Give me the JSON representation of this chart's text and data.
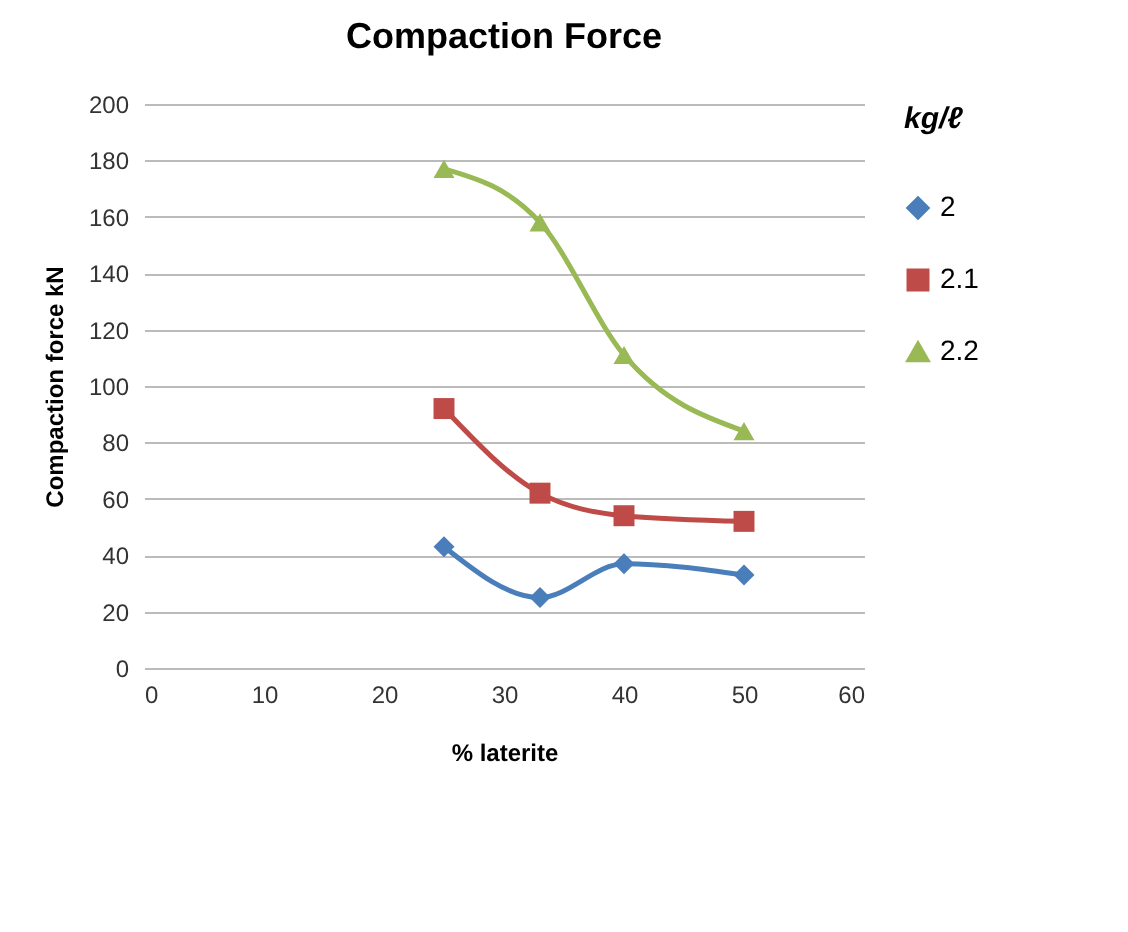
{
  "chart_data": {
    "type": "line",
    "title": "Compaction Force",
    "xlabel": "% laterite",
    "ylabel": "Compaction force kN",
    "legend_title": "kg/ℓ",
    "x": [
      25,
      33,
      40,
      50
    ],
    "series": [
      {
        "name": "2",
        "color": "#4a7ebb",
        "marker": "diamond",
        "values": [
          43,
          25,
          37,
          33
        ]
      },
      {
        "name": "2.1",
        "color": "#be4b48",
        "marker": "square",
        "values": [
          92,
          62,
          54,
          52
        ]
      },
      {
        "name": "2.2",
        "color": "#98b954",
        "marker": "triangle",
        "values": [
          177,
          158,
          111,
          84
        ]
      }
    ],
    "xlim": [
      0,
      60
    ],
    "xticks": [
      0,
      10,
      20,
      30,
      40,
      50,
      60
    ],
    "ylim": [
      0,
      200
    ],
    "yticks": [
      0,
      20,
      40,
      60,
      80,
      100,
      120,
      140,
      160,
      180,
      200
    ],
    "grid": "y",
    "legend": "right",
    "line_style": "solid"
  }
}
